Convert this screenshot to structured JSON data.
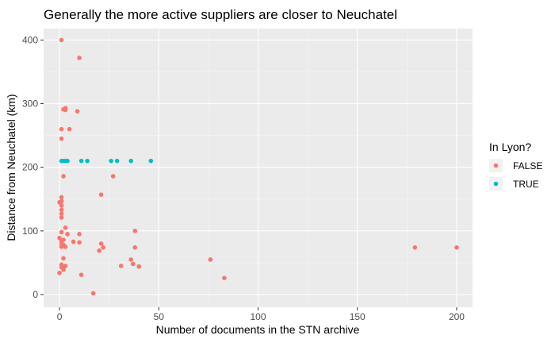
{
  "chart_data": {
    "type": "scatter",
    "title": "Generally the more active suppliers are closer to Neuchatel",
    "xlabel": "Number of documents in the STN archive",
    "ylabel": "Distance from Neuchatel (km)",
    "xlim": [
      -8,
      208
    ],
    "ylim": [
      -20,
      418
    ],
    "x_ticks": [
      0,
      50,
      100,
      150,
      200
    ],
    "y_ticks": [
      0,
      100,
      200,
      300,
      400
    ],
    "x_tick_labels": [
      "0",
      "50",
      "100",
      "150",
      "200"
    ],
    "y_tick_labels": [
      "0",
      "100",
      "200",
      "300",
      "400"
    ],
    "background": "#ebebeb",
    "grid": true,
    "legend": {
      "title": "In Lyon?",
      "placement": "right",
      "entries": [
        {
          "label": "FALSE",
          "color": "#f8766d"
        },
        {
          "label": "TRUE",
          "color": "#00bfc4"
        }
      ]
    },
    "series": [
      {
        "name": "FALSE",
        "color": "#f8766d",
        "points": [
          [
            1,
            400
          ],
          [
            10,
            372
          ],
          [
            3,
            293
          ],
          [
            2,
            291
          ],
          [
            3,
            290
          ],
          [
            9,
            288
          ],
          [
            1,
            260
          ],
          [
            5,
            260
          ],
          [
            1,
            245
          ],
          [
            2,
            186
          ],
          [
            27,
            186
          ],
          [
            21,
            157
          ],
          [
            1,
            153
          ],
          [
            1,
            147
          ],
          [
            0,
            145
          ],
          [
            1,
            140
          ],
          [
            1,
            133
          ],
          [
            1,
            127
          ],
          [
            1,
            121
          ],
          [
            3,
            105
          ],
          [
            38,
            100
          ],
          [
            1,
            98
          ],
          [
            4,
            95
          ],
          [
            10,
            95
          ],
          [
            0,
            89
          ],
          [
            2,
            86
          ],
          [
            1,
            84
          ],
          [
            1,
            80
          ],
          [
            7,
            83
          ],
          [
            10,
            82
          ],
          [
            21,
            80
          ],
          [
            1,
            75
          ],
          [
            2,
            78
          ],
          [
            3,
            75
          ],
          [
            22,
            74
          ],
          [
            38,
            74
          ],
          [
            179,
            74
          ],
          [
            200,
            74
          ],
          [
            20,
            69
          ],
          [
            2,
            57
          ],
          [
            36,
            55
          ],
          [
            76,
            55
          ],
          [
            37,
            48
          ],
          [
            1,
            47
          ],
          [
            1,
            43
          ],
          [
            2,
            42
          ],
          [
            3,
            45
          ],
          [
            31,
            45
          ],
          [
            40,
            44
          ],
          [
            2,
            39
          ],
          [
            0,
            34
          ],
          [
            11,
            31
          ],
          [
            83,
            26
          ],
          [
            17,
            2
          ]
        ]
      },
      {
        "name": "TRUE",
        "color": "#00bfc4",
        "points": [
          [
            1,
            210
          ],
          [
            2,
            210
          ],
          [
            3,
            210
          ],
          [
            4,
            210
          ],
          [
            11,
            210
          ],
          [
            14,
            210
          ],
          [
            26,
            210
          ],
          [
            29,
            210
          ],
          [
            36,
            210
          ],
          [
            46,
            210
          ]
        ]
      }
    ]
  }
}
